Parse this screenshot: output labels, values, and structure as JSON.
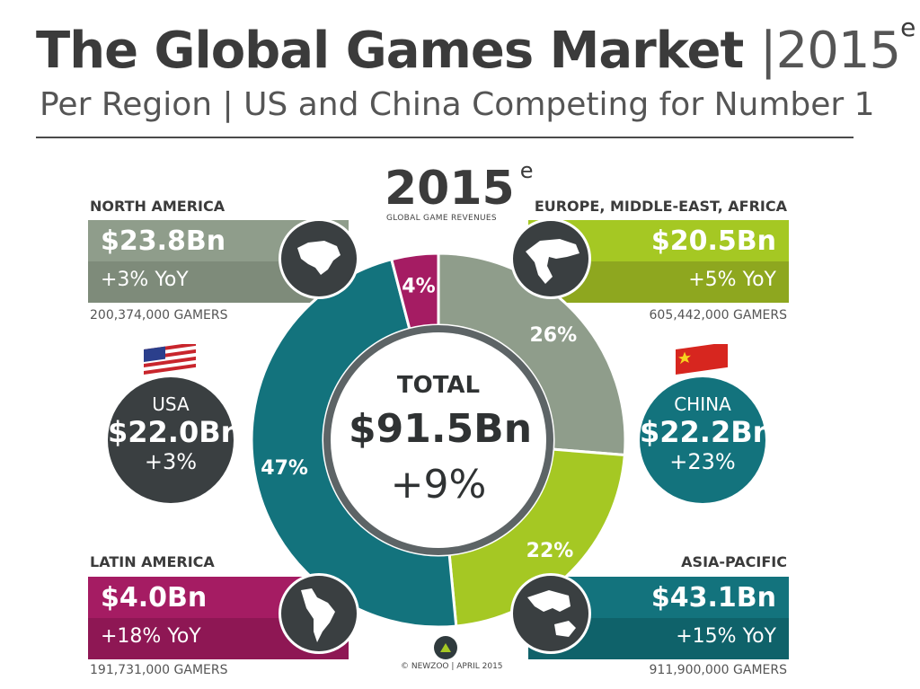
{
  "header": {
    "title": "The Global Games Market",
    "title_year": "|2015",
    "title_sup": "e",
    "subtitle": "Per Region | US and China Competing for Number 1"
  },
  "center": {
    "year": "2015",
    "year_sup": "e",
    "subtitle": "GLOBAL GAME REVENUES",
    "total_label": "TOTAL",
    "total_value": "$91.5Bn",
    "total_growth": "+9%"
  },
  "regions": {
    "north_america": {
      "name": "NORTH AMERICA",
      "value": "$23.8Bn",
      "yoy": "+3% YoY",
      "gamers": "200,374,000 GAMERS",
      "color": "#8f9d8b"
    },
    "emea": {
      "name": "EUROPE, MIDDLE-EAST, AFRICA",
      "value": "$20.5Bn",
      "yoy": "+5% YoY",
      "gamers": "605,442,000 GAMERS",
      "color": "#a5c823"
    },
    "latin_america": {
      "name": "LATIN AMERICA",
      "value": "$4.0Bn",
      "yoy": "+18% YoY",
      "gamers": "191,731,000 GAMERS",
      "color": "#a51c63"
    },
    "asia_pacific": {
      "name": "ASIA-PACIFIC",
      "value": "$43.1Bn",
      "yoy": "+15% YoY",
      "gamers": "911,900,000 GAMERS",
      "color": "#13737d"
    }
  },
  "countries": {
    "usa": {
      "name": "USA",
      "value": "$22.0Bn",
      "growth": "+3%",
      "color": "#3a3f41"
    },
    "china": {
      "name": "CHINA",
      "value": "$22.2Bn",
      "growth": "+23%",
      "color": "#13737d"
    }
  },
  "footer": {
    "credit": "© NEWZOO | APRIL 2015"
  },
  "chart_data": {
    "type": "pie",
    "title": "GLOBAL GAME REVENUES",
    "categories": [
      "NORTH AMERICA",
      "EUROPE, MIDDLE-EAST, AFRICA",
      "ASIA-PACIFIC",
      "LATIN AMERICA"
    ],
    "values": [
      26,
      22,
      47,
      4
    ],
    "labels": [
      "26%",
      "22%",
      "47%",
      "4%"
    ],
    "colors": [
      "#8f9d8b",
      "#a5c823",
      "#13737d",
      "#a51c63"
    ]
  }
}
